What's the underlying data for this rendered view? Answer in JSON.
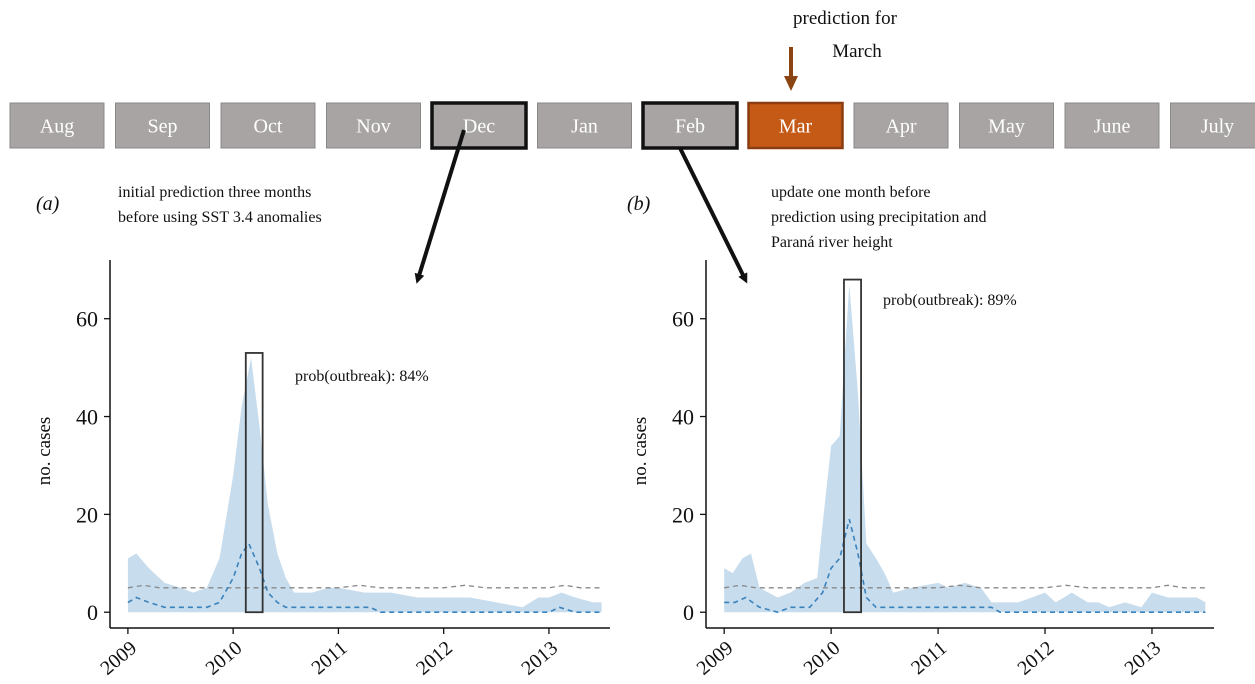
{
  "timeline": {
    "months": [
      "Aug",
      "Sep",
      "Oct",
      "Nov",
      "Dec",
      "Jan",
      "Feb",
      "Mar",
      "Apr",
      "May",
      "June",
      "July"
    ],
    "highlighted_outline": [
      "Dec",
      "Feb"
    ],
    "target_month": "Mar",
    "prediction_label_line1": "prediction for",
    "prediction_label_line2": "March",
    "box_color": "#a8a4a4",
    "target_color": "#c45a16",
    "arrow_color": "#8b4513"
  },
  "panel_a": {
    "label": "(a)",
    "caption_line1": "initial prediction three months",
    "caption_line2": "before using SST 3.4 anomalies"
  },
  "panel_b": {
    "label": "(b)",
    "caption_line1": "update one month before",
    "caption_line2": "prediction using precipitation and",
    "caption_line3": "Paraná river height"
  },
  "colors": {
    "band": "#c7dced",
    "median": "#3a82bb",
    "threshold": "#888888",
    "box": "#333333"
  },
  "chart_data": [
    {
      "type": "area",
      "ylabel": "no. cases",
      "xlabel": "",
      "ylim": [
        -2,
        72
      ],
      "xlim": [
        2008.83,
        2013.58
      ],
      "grid": false,
      "x_tick_labels": [
        "2009",
        "2010",
        "2011",
        "2012",
        "2013"
      ],
      "y_tick_labels": [
        "0",
        "20",
        "40",
        "60"
      ],
      "x_ticks": [
        2009,
        2010,
        2011,
        2012,
        2013
      ],
      "y_ticks": [
        0,
        20,
        40,
        60
      ],
      "annotation": "prob(outbreak): 84%",
      "highlight_box": {
        "x0": 2010.12,
        "x1": 2010.28,
        "y0": 0,
        "y1": 53
      },
      "threshold": 5,
      "upper": [
        [
          2009.0,
          11
        ],
        [
          2009.08,
          12
        ],
        [
          2009.2,
          9
        ],
        [
          2009.35,
          6
        ],
        [
          2009.5,
          5
        ],
        [
          2009.62,
          4
        ],
        [
          2009.75,
          5
        ],
        [
          2009.87,
          11
        ],
        [
          2010.0,
          28
        ],
        [
          2010.08,
          42
        ],
        [
          2010.17,
          52
        ],
        [
          2010.25,
          38
        ],
        [
          2010.33,
          22
        ],
        [
          2010.42,
          12
        ],
        [
          2010.5,
          7
        ],
        [
          2010.58,
          4
        ],
        [
          2010.75,
          4
        ],
        [
          2010.9,
          5
        ],
        [
          2011.0,
          5
        ],
        [
          2011.25,
          4
        ],
        [
          2011.5,
          4
        ],
        [
          2011.75,
          3
        ],
        [
          2012.0,
          3
        ],
        [
          2012.25,
          3
        ],
        [
          2012.5,
          2
        ],
        [
          2012.75,
          1
        ],
        [
          2012.9,
          3
        ],
        [
          2013.0,
          3
        ],
        [
          2013.12,
          4
        ],
        [
          2013.25,
          3
        ],
        [
          2013.42,
          2
        ],
        [
          2013.5,
          2
        ]
      ],
      "lower": [
        [
          2009.0,
          0
        ],
        [
          2010.0,
          0
        ],
        [
          2010.2,
          0
        ],
        [
          2011.0,
          0
        ],
        [
          2012.0,
          0
        ],
        [
          2013.5,
          0
        ]
      ],
      "median": [
        [
          2009.0,
          2
        ],
        [
          2009.08,
          3
        ],
        [
          2009.2,
          2
        ],
        [
          2009.35,
          1
        ],
        [
          2009.6,
          1
        ],
        [
          2009.75,
          1
        ],
        [
          2009.87,
          2
        ],
        [
          2010.0,
          7
        ],
        [
          2010.08,
          12
        ],
        [
          2010.15,
          14
        ],
        [
          2010.25,
          9
        ],
        [
          2010.33,
          4
        ],
        [
          2010.42,
          2
        ],
        [
          2010.5,
          1
        ],
        [
          2011.0,
          1
        ],
        [
          2011.3,
          1
        ],
        [
          2011.4,
          0
        ],
        [
          2012.0,
          0
        ],
        [
          2012.9,
          0
        ],
        [
          2013.0,
          0
        ],
        [
          2013.1,
          1
        ],
        [
          2013.25,
          0
        ],
        [
          2013.5,
          0
        ]
      ],
      "threshold_series": [
        [
          2009.0,
          5
        ],
        [
          2009.15,
          5.5
        ],
        [
          2009.3,
          5
        ],
        [
          2010.5,
          5
        ],
        [
          2011.0,
          5
        ],
        [
          2011.2,
          5.5
        ],
        [
          2011.4,
          5
        ],
        [
          2012.0,
          5
        ],
        [
          2012.2,
          5.5
        ],
        [
          2012.4,
          5
        ],
        [
          2013.0,
          5
        ],
        [
          2013.15,
          5.5
        ],
        [
          2013.3,
          5
        ],
        [
          2013.5,
          5
        ]
      ]
    },
    {
      "type": "area",
      "ylabel": "no. cases",
      "xlabel": "",
      "ylim": [
        -2,
        72
      ],
      "xlim": [
        2008.83,
        2013.58
      ],
      "grid": false,
      "x_tick_labels": [
        "2009",
        "2010",
        "2011",
        "2012",
        "2013"
      ],
      "y_tick_labels": [
        "0",
        "20",
        "40",
        "60"
      ],
      "x_ticks": [
        2009,
        2010,
        2011,
        2012,
        2013
      ],
      "y_ticks": [
        0,
        20,
        40,
        60
      ],
      "annotation": "prob(outbreak): 89%",
      "highlight_box": {
        "x0": 2010.12,
        "x1": 2010.28,
        "y0": 0,
        "y1": 68
      },
      "threshold": 5,
      "upper": [
        [
          2009.0,
          9
        ],
        [
          2009.08,
          8
        ],
        [
          2009.17,
          11
        ],
        [
          2009.25,
          12
        ],
        [
          2009.33,
          5
        ],
        [
          2009.5,
          3
        ],
        [
          2009.62,
          4
        ],
        [
          2009.75,
          6
        ],
        [
          2009.87,
          7
        ],
        [
          2009.92,
          18
        ],
        [
          2010.0,
          34
        ],
        [
          2010.08,
          36
        ],
        [
          2010.17,
          67
        ],
        [
          2010.25,
          45
        ],
        [
          2010.33,
          14
        ],
        [
          2010.42,
          11
        ],
        [
          2010.5,
          8
        ],
        [
          2010.58,
          4
        ],
        [
          2010.75,
          5
        ],
        [
          2011.0,
          6
        ],
        [
          2011.1,
          5
        ],
        [
          2011.25,
          6
        ],
        [
          2011.4,
          5
        ],
        [
          2011.5,
          2
        ],
        [
          2011.75,
          2
        ],
        [
          2012.0,
          4
        ],
        [
          2012.1,
          2
        ],
        [
          2012.25,
          4
        ],
        [
          2012.4,
          2
        ],
        [
          2012.5,
          2
        ],
        [
          2012.6,
          1
        ],
        [
          2012.75,
          2
        ],
        [
          2012.9,
          1
        ],
        [
          2013.0,
          4
        ],
        [
          2013.15,
          3
        ],
        [
          2013.3,
          3
        ],
        [
          2013.42,
          3
        ],
        [
          2013.5,
          2
        ]
      ],
      "lower": [
        [
          2009.0,
          0
        ],
        [
          2010.0,
          0
        ],
        [
          2011.0,
          0
        ],
        [
          2012.0,
          0
        ],
        [
          2013.5,
          0
        ]
      ],
      "median": [
        [
          2009.0,
          2
        ],
        [
          2009.1,
          2
        ],
        [
          2009.2,
          3
        ],
        [
          2009.33,
          1
        ],
        [
          2009.5,
          0
        ],
        [
          2009.62,
          1
        ],
        [
          2009.8,
          1
        ],
        [
          2009.92,
          4
        ],
        [
          2010.0,
          9
        ],
        [
          2010.08,
          11
        ],
        [
          2010.17,
          19
        ],
        [
          2010.25,
          12
        ],
        [
          2010.33,
          3
        ],
        [
          2010.42,
          1
        ],
        [
          2010.5,
          1
        ],
        [
          2011.0,
          1
        ],
        [
          2011.5,
          1
        ],
        [
          2011.58,
          0
        ],
        [
          2012.0,
          0
        ],
        [
          2013.0,
          0
        ],
        [
          2013.5,
          0
        ]
      ],
      "threshold_series": [
        [
          2009.0,
          5
        ],
        [
          2009.15,
          5.5
        ],
        [
          2009.3,
          5
        ],
        [
          2010.5,
          5
        ],
        [
          2011.0,
          5
        ],
        [
          2011.2,
          5.5
        ],
        [
          2011.4,
          5
        ],
        [
          2012.0,
          5
        ],
        [
          2012.2,
          5.5
        ],
        [
          2012.4,
          5
        ],
        [
          2013.0,
          5
        ],
        [
          2013.15,
          5.5
        ],
        [
          2013.3,
          5
        ],
        [
          2013.5,
          5
        ]
      ]
    }
  ]
}
